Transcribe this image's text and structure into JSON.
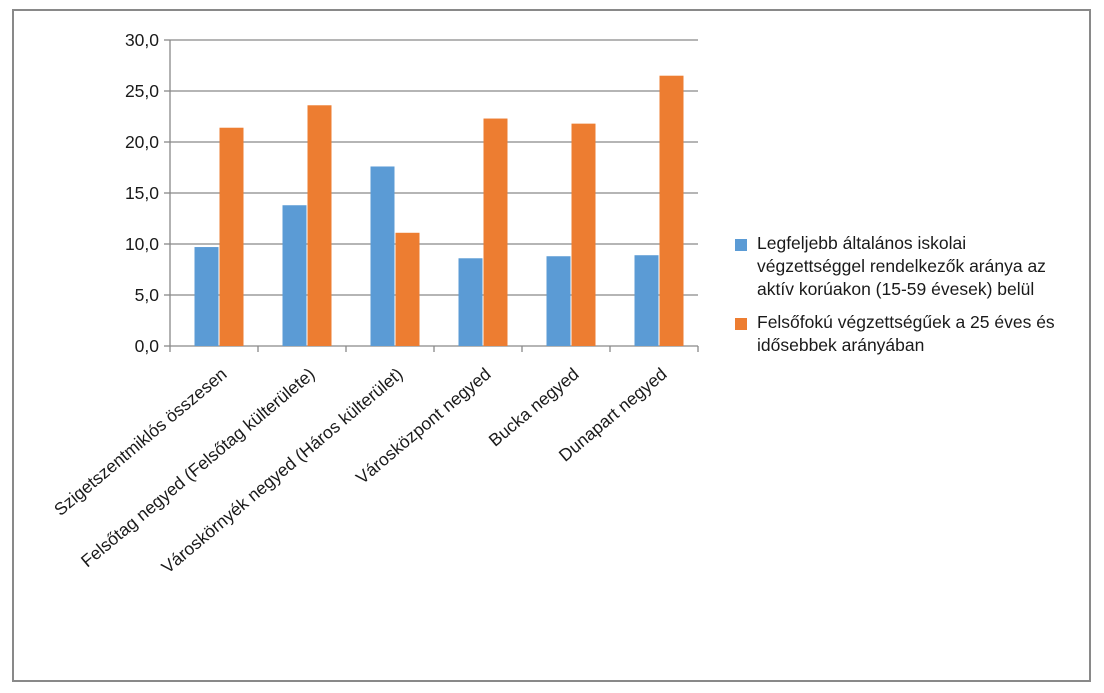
{
  "chart_data": {
    "type": "bar",
    "categories": [
      "Szigetszentmiklós összesen",
      "Felsőtag negyed (Felsőtag külterülete)",
      "Városkörnyék negyed (Háros külterület)",
      "Városközpont negyed",
      "Bucka negyed",
      "Dunapart negyed"
    ],
    "series": [
      {
        "name": "Legfeljebb általános iskolai végzettséggel rendelkezők aránya az aktív korúakon (15-59 évesek) belül",
        "color": "#5b9bd5",
        "values": [
          9.7,
          13.8,
          17.6,
          8.6,
          8.8,
          8.9
        ]
      },
      {
        "name": "Felsőfokú végzettségűek a 25 éves és idősebbek arányában",
        "color": "#ed7d31",
        "values": [
          21.4,
          23.6,
          11.1,
          22.3,
          21.8,
          26.5
        ]
      }
    ],
    "ylim": [
      0,
      30
    ],
    "yticks": [
      "0,0",
      "5,0",
      "10,0",
      "15,0",
      "20,0",
      "25,0",
      "30,0"
    ],
    "grid": true,
    "legend_position": "right",
    "gridline_color": "#898989",
    "axis_color": "#898989"
  }
}
